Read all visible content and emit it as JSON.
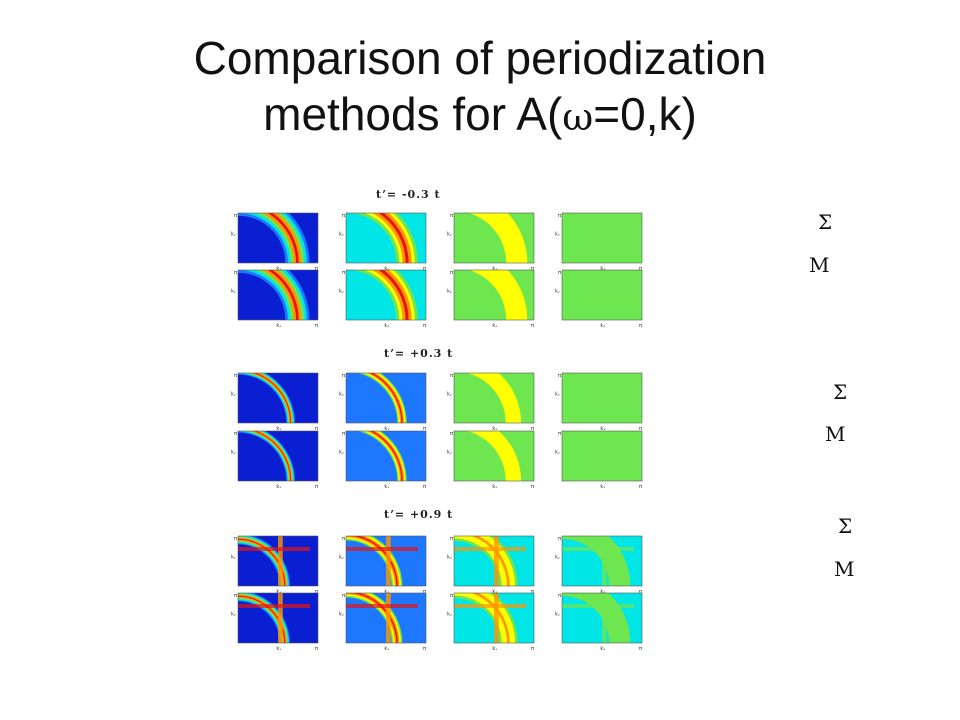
{
  "slide": {
    "title_line1": "Comparison of periodization",
    "title_line2_prefix": "methods for A(",
    "title_omega": "ω",
    "title_line2_suffix": "=0,k)"
  },
  "groups": [
    {
      "label": "t’= -0.3 t",
      "top_symbol": "Σ",
      "bottom_symbol": "M"
    },
    {
      "label": "t’= +0.3 t",
      "top_symbol": "Σ",
      "bottom_symbol": "M"
    },
    {
      "label": "t’= +0.9 t",
      "top_symbol": "Σ",
      "bottom_symbol": "M"
    }
  ],
  "panel_axis_labels": {
    "y": "kᵧ",
    "x": "kₓ",
    "end": "π",
    "start": "0"
  },
  "colormap": [
    "#0a1ed2",
    "#1e78ff",
    "#00e6e6",
    "#6ee650",
    "#ffff00",
    "#ff9600",
    "#e61414"
  ]
}
